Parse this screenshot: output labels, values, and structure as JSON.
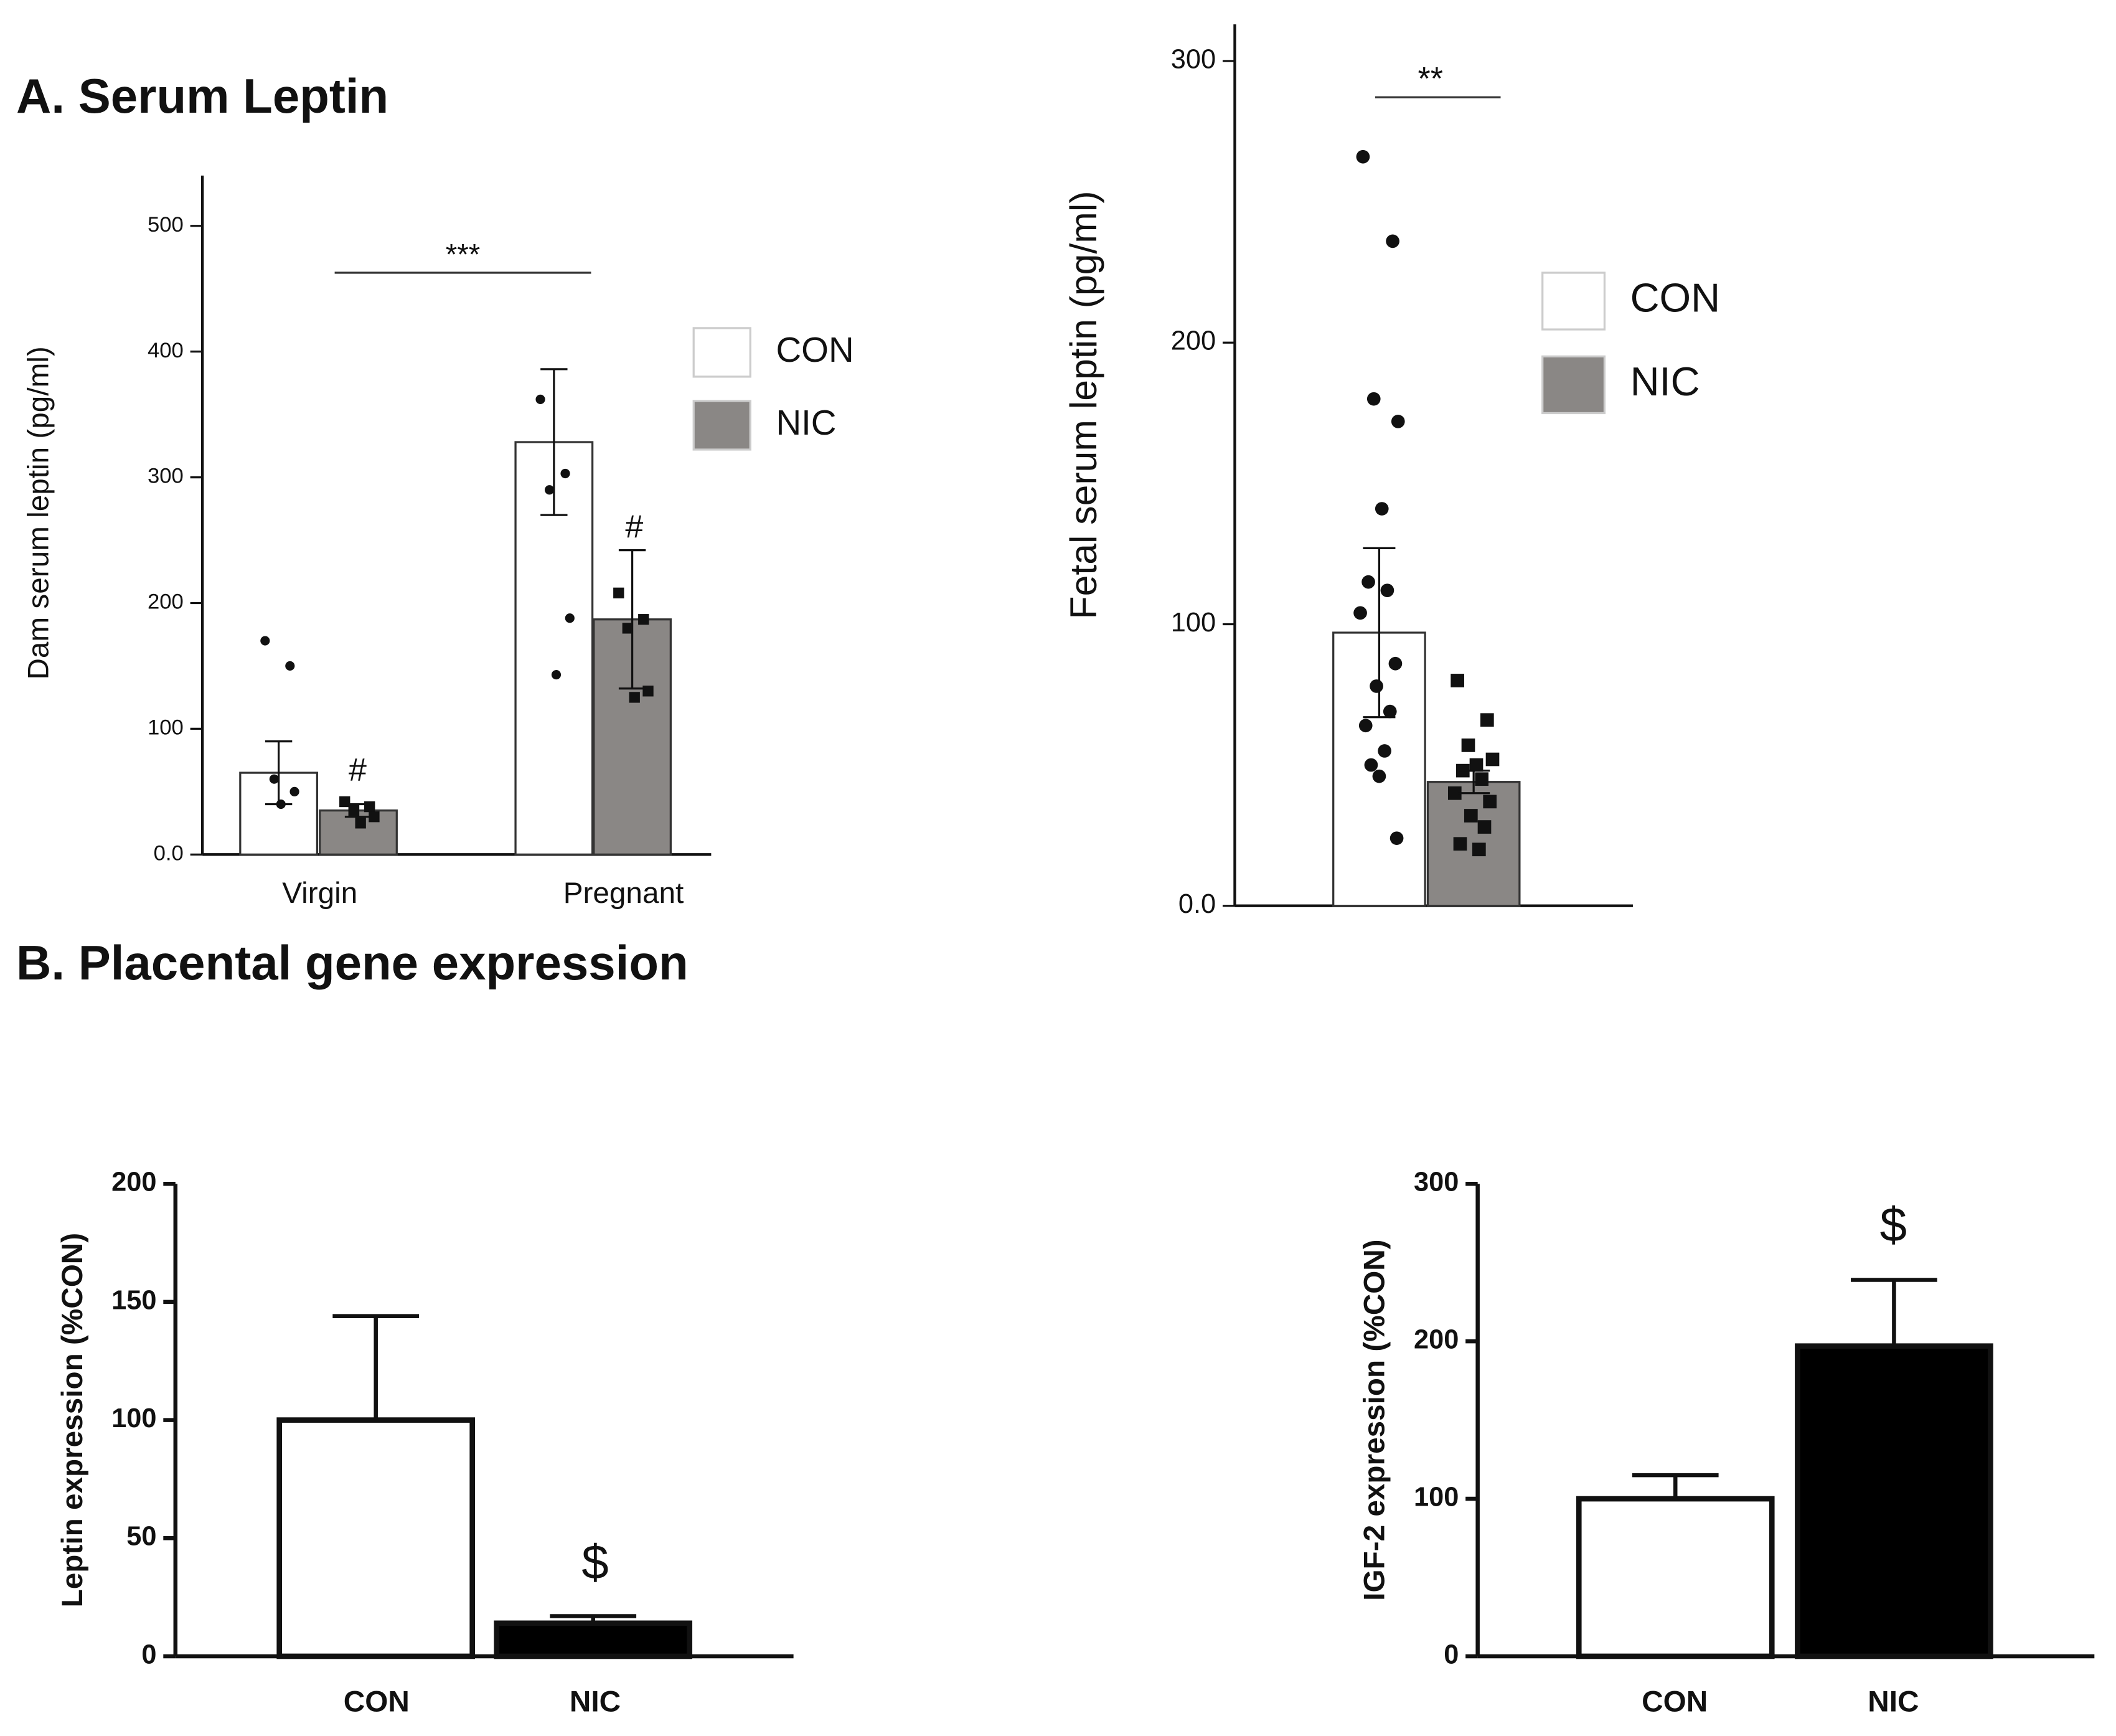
{
  "headings": [
    "A. Serum  Leptin",
    "B. Placental gene expression"
  ],
  "chart_data": [
    {
      "type": "bar",
      "ylabel": "Dam serum leptin (pg/ml)",
      "categories": [
        "Virgin",
        "Pregnant"
      ],
      "series": [
        {
          "name": "CON",
          "color": "#ffffff",
          "values": [
            65,
            328
          ],
          "errors": [
            25,
            58
          ],
          "points": [
            [
              170,
              150,
              60,
              50,
              40
            ],
            [
              362,
              303,
              290,
              188,
              143
            ]
          ]
        },
        {
          "name": "NIC",
          "color": "#8a8785",
          "values": [
            35,
            187
          ],
          "errors": [
            5,
            55
          ],
          "points": [
            [
              42,
              38,
              35,
              30,
              25
            ],
            [
              208,
              187,
              180,
              130,
              125
            ]
          ]
        }
      ],
      "ylim": [
        0,
        540
      ],
      "yticks": [
        {
          "value": 0,
          "label": "0.0"
        },
        100,
        200,
        300,
        400,
        500
      ],
      "annotations": [
        "#",
        "#",
        "***"
      ],
      "legend": "upper right"
    },
    {
      "type": "bar",
      "ylabel": "Fetal serum leptin (pg/ml)",
      "categories": [
        null
      ],
      "series": [
        {
          "name": "CON",
          "color": "#ffffff",
          "values": [
            97
          ],
          "errors": [
            30
          ],
          "points": [
            [
              266,
              236,
              180,
              172,
              141,
              115,
              112,
              104,
              86,
              78,
              69,
              64,
              55,
              50,
              46,
              24
            ]
          ]
        },
        {
          "name": "NIC",
          "color": "#8a8785",
          "values": [
            44
          ],
          "errors": [
            4
          ],
          "points": [
            [
              80,
              66,
              57,
              52,
              50,
              48,
              45,
              40,
              37,
              32,
              28,
              22,
              20
            ]
          ]
        }
      ],
      "ylim": [
        0,
        313
      ],
      "yticks": [
        {
          "value": 0,
          "label": "0.0"
        },
        100,
        200,
        300
      ],
      "annotations": [
        "**"
      ],
      "legend": "upper right"
    },
    {
      "type": "bar",
      "ylabel": "Leptin expression (%CON)",
      "categories": [
        "CON",
        "NIC"
      ],
      "values": [
        100,
        14
      ],
      "errors": [
        44,
        3
      ],
      "colors": [
        "#ffffff",
        "#000000"
      ],
      "ylim": [
        0,
        200
      ],
      "yticks": [
        0,
        50,
        100,
        150,
        200
      ],
      "annotations": [
        "$"
      ]
    },
    {
      "type": "bar",
      "ylabel": "IGF-2 expression (%CON)",
      "categories": [
        "CON",
        "NIC"
      ],
      "values": [
        100,
        197
      ],
      "errors": [
        15,
        42
      ],
      "colors": [
        "#ffffff",
        "#000000"
      ],
      "ylim": [
        0,
        300
      ],
      "yticks": [
        0,
        100,
        200,
        300
      ],
      "annotations": [
        "$"
      ]
    }
  ]
}
